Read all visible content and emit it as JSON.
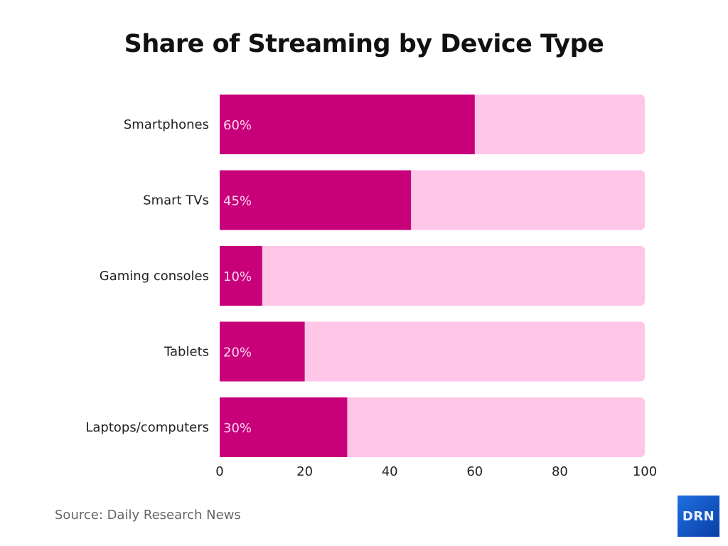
{
  "chart_data": {
    "type": "bar",
    "orientation": "horizontal",
    "title": "Share of Streaming by Device Type",
    "categories": [
      "Smartphones",
      "Smart TVs",
      "Gaming consoles",
      "Tablets",
      "Laptops/computers"
    ],
    "values": [
      60,
      45,
      10,
      20,
      30
    ],
    "data_labels": [
      "60%",
      "45%",
      "10%",
      "20%",
      "30%"
    ],
    "xlim": [
      0,
      100
    ],
    "xticks": [
      "0",
      "20",
      "40",
      "60",
      "80",
      "100"
    ],
    "grid": false,
    "colors": {
      "bar": "#C8007A",
      "track": "#FFC6E8",
      "label": "#FFD6EE"
    }
  },
  "source": "Source: Daily Research News",
  "logo": "DRN"
}
